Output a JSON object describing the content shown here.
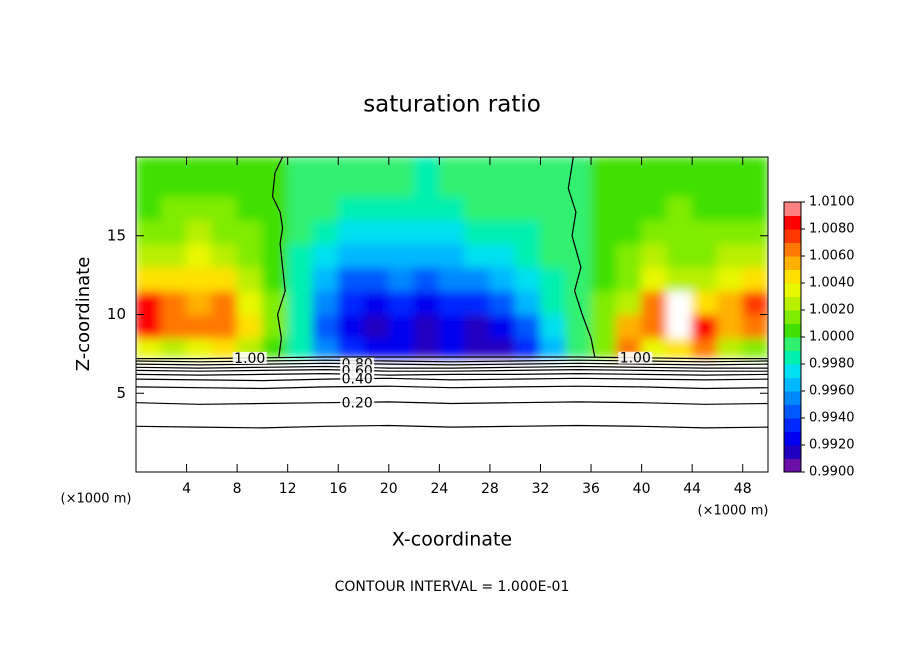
{
  "chart_data": {
    "type": "contour",
    "title": "saturation ratio",
    "x_label": "X-coordinate",
    "y_label": "Z-coordinate",
    "x_unit": "(×1000 m)",
    "footer": "CONTOUR INTERVAL = 1.000E-01",
    "xlim": [
      0,
      50
    ],
    "xticks": [
      4,
      8,
      12,
      16,
      20,
      24,
      28,
      32,
      36,
      40,
      44,
      48
    ],
    "ylim": [
      0,
      20
    ],
    "yticks": [
      5,
      10,
      15
    ],
    "field": {
      "xbins": [
        0,
        2,
        4,
        6,
        8,
        10,
        12,
        14,
        16,
        18,
        20,
        22,
        24,
        26,
        28,
        30,
        32,
        34,
        36,
        38,
        40,
        42,
        44,
        46,
        48,
        50
      ],
      "zbins": [
        7.3,
        8.5,
        10,
        11.5,
        13,
        14.5,
        16,
        17.5,
        20
      ],
      "values": [
        [
          1.003,
          1.002,
          1.003,
          1.004,
          1.002,
          1.0,
          0.998,
          0.995,
          0.993,
          0.992,
          0.992,
          0.991,
          0.992,
          0.991,
          0.991,
          0.993,
          0.996,
          0.999,
          1.001,
          1.006,
          1.003,
          1.004,
          1.006,
          1.002,
          1.001
        ],
        [
          1.008,
          1.006,
          1.006,
          1.006,
          1.004,
          1.001,
          0.998,
          0.994,
          0.992,
          0.991,
          0.992,
          0.991,
          0.992,
          0.991,
          0.992,
          0.994,
          0.997,
          0.999,
          1.001,
          1.005,
          1.006,
          1.011,
          1.008,
          1.005,
          1.006
        ],
        [
          1.008,
          1.006,
          1.005,
          1.006,
          1.003,
          1.001,
          0.998,
          0.995,
          0.993,
          0.992,
          0.993,
          0.992,
          0.993,
          0.993,
          0.994,
          0.996,
          0.998,
          0.999,
          1.001,
          1.002,
          1.006,
          1.011,
          1.004,
          1.005,
          1.007
        ],
        [
          1.004,
          1.004,
          1.004,
          1.004,
          1.002,
          1.0,
          0.998,
          0.996,
          0.994,
          0.994,
          0.995,
          0.994,
          0.995,
          0.995,
          0.996,
          0.997,
          0.998,
          0.999,
          1.0,
          1.001,
          1.003,
          1.002,
          1.002,
          1.003,
          1.004
        ],
        [
          1.002,
          1.002,
          1.003,
          1.002,
          1.001,
          1.0,
          0.998,
          0.997,
          0.996,
          0.996,
          0.996,
          0.996,
          0.996,
          0.997,
          0.997,
          0.998,
          0.999,
          0.999,
          1.0,
          1.001,
          1.002,
          1.001,
          1.001,
          1.002,
          1.002
        ],
        [
          1.001,
          1.001,
          1.002,
          1.001,
          1.001,
          1.0,
          0.999,
          0.998,
          0.997,
          0.997,
          0.997,
          0.997,
          0.997,
          0.998,
          0.998,
          0.998,
          0.999,
          0.999,
          1.0,
          1.0,
          1.001,
          1.001,
          1.001,
          1.001,
          1.001
        ],
        [
          1.0,
          1.001,
          1.001,
          1.001,
          1.0,
          1.0,
          0.999,
          0.999,
          0.998,
          0.998,
          0.998,
          0.998,
          0.998,
          0.999,
          0.999,
          0.999,
          0.999,
          0.999,
          1.0,
          1.0,
          1.0,
          1.001,
          1.0,
          1.0,
          1.0
        ],
        [
          1.0,
          1.0,
          1.0,
          1.0,
          1.0,
          1.0,
          0.999,
          0.999,
          0.999,
          0.999,
          0.999,
          0.998,
          0.999,
          0.999,
          0.999,
          0.999,
          0.999,
          0.999,
          1.0,
          1.0,
          1.0,
          1.0,
          1.0,
          1.0,
          1.0
        ]
      ]
    },
    "colorbar": {
      "clim": [
        0.99,
        1.01
      ],
      "colors": [
        "#6a10a8",
        "#2000c0",
        "#0000f0",
        "#0028ff",
        "#0058ff",
        "#0088ff",
        "#00b8ff",
        "#00e0f0",
        "#00f0b0",
        "#30f070",
        "#40e000",
        "#80ec00",
        "#b8f000",
        "#e8f800",
        "#ffe000",
        "#ffb000",
        "#ff7800",
        "#ff3800",
        "#ff0000",
        "#ff8080"
      ],
      "ticks": [
        {
          "value": 0.99,
          "label": "0.9900"
        },
        {
          "value": 0.992,
          "label": "0.9920"
        },
        {
          "value": 0.994,
          "label": "0.9940"
        },
        {
          "value": 0.996,
          "label": "0.9960"
        },
        {
          "value": 0.998,
          "label": "0.9980"
        },
        {
          "value": 1.0,
          "label": "1.0000"
        },
        {
          "value": 1.002,
          "label": "1.0020"
        },
        {
          "value": 1.004,
          "label": "1.0040"
        },
        {
          "value": 1.006,
          "label": "1.0060"
        },
        {
          "value": 1.008,
          "label": "1.0080"
        },
        {
          "value": 1.01,
          "label": "1.0100"
        }
      ]
    },
    "contours": [
      {
        "level": 1.0,
        "label": "1.00",
        "x": [
          0,
          5,
          10,
          15,
          20,
          25,
          30,
          35,
          40,
          45,
          50,
          null,
          11.3,
          11.5,
          11.2,
          11.8,
          11.6,
          11.4,
          11.6,
          11.4,
          10.8,
          11.0,
          11.6,
          null,
          36.3,
          36.0,
          35.3,
          34.7,
          35.2,
          34.5,
          34.8,
          34.2,
          34.6
        ],
        "z": [
          7.2,
          7.2,
          7.25,
          7.3,
          7.3,
          7.3,
          7.3,
          7.3,
          7.25,
          7.2,
          7.2,
          null,
          7.3,
          8.5,
          10,
          11.5,
          13,
          14.5,
          15.5,
          16.5,
          17.5,
          19,
          20,
          null,
          7.3,
          8.5,
          10,
          11.5,
          13,
          15,
          16.5,
          18,
          20
        ]
      },
      {
        "level": 0.9,
        "x": [
          0,
          5,
          10,
          15,
          20,
          25,
          30,
          35,
          40,
          45,
          50
        ],
        "z": [
          7.05,
          7.0,
          7.05,
          7.1,
          7.05,
          7.0,
          7.05,
          7.1,
          7.05,
          7.0,
          7.05
        ]
      },
      {
        "level": 0.8,
        "label": "0.80",
        "x": [
          0,
          5,
          10,
          15,
          20,
          25,
          30,
          35,
          40,
          45,
          50
        ],
        "z": [
          6.85,
          6.8,
          6.85,
          6.9,
          6.85,
          6.8,
          6.85,
          6.9,
          6.85,
          6.8,
          6.85
        ]
      },
      {
        "level": 0.7,
        "x": [
          0,
          5,
          10,
          15,
          20,
          25,
          30,
          35,
          40,
          45,
          50
        ],
        "z": [
          6.65,
          6.6,
          6.65,
          6.7,
          6.6,
          6.6,
          6.65,
          6.7,
          6.65,
          6.6,
          6.6
        ]
      },
      {
        "level": 0.6,
        "label": "0.60",
        "x": [
          0,
          5,
          10,
          15,
          20,
          25,
          30,
          35,
          40,
          45,
          50
        ],
        "z": [
          6.45,
          6.4,
          6.45,
          6.5,
          6.4,
          6.4,
          6.45,
          6.5,
          6.45,
          6.4,
          6.4
        ]
      },
      {
        "level": 0.5,
        "x": [
          0,
          5,
          10,
          15,
          20,
          25,
          30,
          35,
          40,
          45,
          50
        ],
        "z": [
          6.2,
          6.15,
          6.2,
          6.25,
          6.15,
          6.2,
          6.2,
          6.25,
          6.2,
          6.15,
          6.2
        ]
      },
      {
        "level": 0.4,
        "label": "0.40",
        "x": [
          0,
          5,
          10,
          15,
          20,
          25,
          30,
          35,
          40,
          45,
          50
        ],
        "z": [
          5.9,
          5.85,
          5.8,
          5.9,
          5.95,
          5.85,
          5.9,
          5.95,
          5.9,
          5.85,
          5.9
        ]
      },
      {
        "level": 0.3,
        "x": [
          0,
          5,
          10,
          15,
          20,
          25,
          30,
          35,
          40,
          45,
          50
        ],
        "z": [
          5.4,
          5.35,
          5.3,
          5.4,
          5.45,
          5.35,
          5.4,
          5.45,
          5.4,
          5.3,
          5.35
        ]
      },
      {
        "level": 0.2,
        "label": "0.20",
        "x": [
          0,
          5,
          10,
          15,
          20,
          25,
          30,
          35,
          40,
          45,
          50
        ],
        "z": [
          4.4,
          4.3,
          4.35,
          4.4,
          4.45,
          4.35,
          4.4,
          4.45,
          4.4,
          4.3,
          4.35
        ]
      },
      {
        "level": 0.1,
        "x": [
          0,
          5,
          10,
          15,
          20,
          25,
          30,
          35,
          40,
          45,
          50
        ],
        "z": [
          2.9,
          2.85,
          2.8,
          2.9,
          2.95,
          2.85,
          2.9,
          2.95,
          2.9,
          2.8,
          2.85
        ]
      }
    ]
  }
}
